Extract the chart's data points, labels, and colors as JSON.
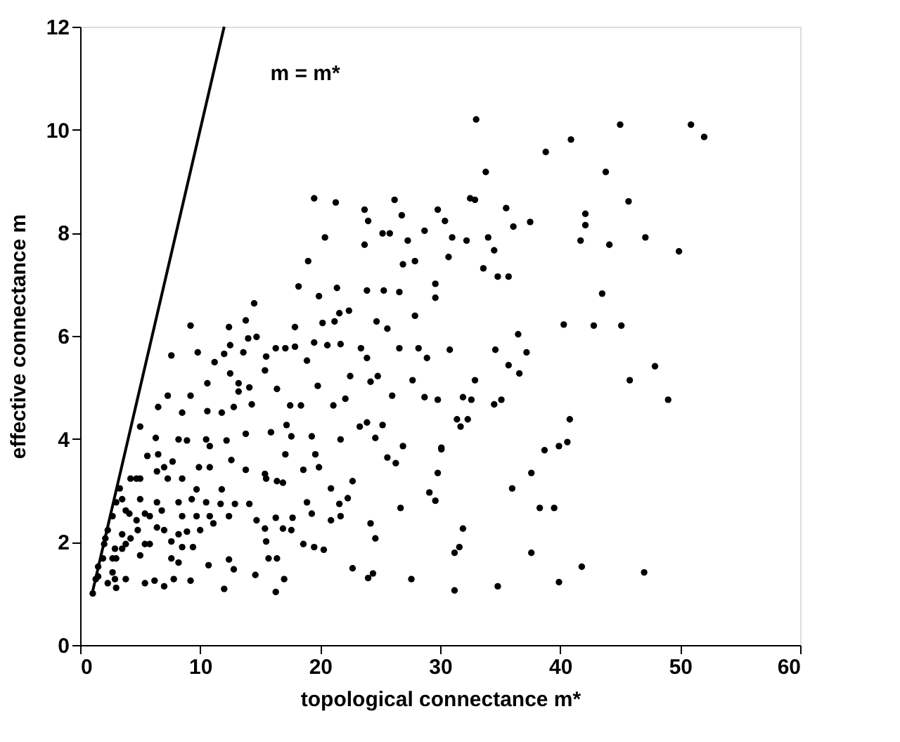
{
  "chart_data": {
    "type": "scatter",
    "xlabel": "topological connectance   m*",
    "ylabel": "effective connectance   m",
    "xlim": [
      0,
      60
    ],
    "xticks": [
      0,
      10,
      20,
      30,
      40,
      50,
      60
    ],
    "ylim": [
      0,
      12
    ],
    "yticks": [
      0,
      2,
      4,
      6,
      8,
      10,
      12
    ],
    "grid": false,
    "annotations": [
      "m = m*"
    ],
    "series": [
      {
        "type": "line",
        "color": "#000000",
        "line_style": "solid",
        "marker": "none",
        "x": [
          1,
          12
        ],
        "values": [
          1,
          12
        ]
      },
      {
        "color": "#000000",
        "marker": "circle",
        "x": [
          33.0,
          45.0,
          50.9,
          52.0,
          40.9,
          38.8,
          33.8,
          43.8,
          32.5,
          32.9,
          45.7,
          29.8,
          35.5,
          42.1,
          30.4,
          36.1,
          37.5,
          42.1,
          31.0,
          32.2,
          34.0,
          34.5,
          41.7,
          44.1,
          47.1,
          49.9,
          30.7,
          33.6,
          34.8,
          35.7,
          43.5,
          40.3,
          42.8,
          45.1,
          36.5,
          30.8,
          34.6,
          37.2,
          35.7,
          36.6,
          32.9,
          45.8,
          47.9,
          49.0,
          29.8,
          31.9,
          32.6,
          34.5,
          35.1,
          31.4,
          32.3,
          31.7,
          40.8,
          30.1,
          38.7,
          39.9,
          40.6,
          29.8,
          37.6,
          36.0,
          38.3,
          39.5,
          31.9,
          31.6,
          31.2,
          37.6,
          41.8,
          47.0,
          31.2,
          34.8,
          39.9,
          19.5,
          21.3,
          23.7,
          26.2,
          24.0,
          26.8,
          20.4,
          23.7,
          25.2,
          25.8,
          27.3,
          28.7,
          19.0,
          26.9,
          27.9,
          18.2,
          19.9,
          21.4,
          23.9,
          25.3,
          26.6,
          29.6,
          29.6,
          14.5,
          13.8,
          9.2,
          12.4,
          17.9,
          20.2,
          21.6,
          22.4,
          21.2,
          24.7,
          25.6,
          27.9,
          7.6,
          9.8,
          12.5,
          14.0,
          14.7,
          16.3,
          17.1,
          17.9,
          19.5,
          20.6,
          21.7,
          23.4,
          26.6,
          28.2,
          28.9,
          12.0,
          13.6,
          11.2,
          15.5,
          18.9,
          23.9,
          10.6,
          12.5,
          13.2,
          14.1,
          15.4,
          16.4,
          19.8,
          22.5,
          24.2,
          24.8,
          27.7,
          7.3,
          9.2,
          13.2,
          22.1,
          26.0,
          28.7,
          6.5,
          8.5,
          10.6,
          11.8,
          12.8,
          14.3,
          17.5,
          18.4,
          21.1,
          5.0,
          6.3,
          8.2,
          8.9,
          10.5,
          10.8,
          12.2,
          13.8,
          15.9,
          17.2,
          17.6,
          19.3,
          21.7,
          23.3,
          23.9,
          24.6,
          25.2,
          26.9,
          30.1,
          5.6,
          6.5,
          7.7,
          9.9,
          10.8,
          12.6,
          13.8,
          15.4,
          17.1,
          18.6,
          19.6,
          19.9,
          25.6,
          26.3,
          3.3,
          4.2,
          5.0,
          7.3,
          8.5,
          9.7,
          11.8,
          15.5,
          16.4,
          16.9,
          20.9,
          22.7,
          29.1,
          29.6,
          3.0,
          5.0,
          6.4,
          8.2,
          9.3,
          10.5,
          11.7,
          12.9,
          14.1,
          18.9,
          19.3,
          21.6,
          22.3,
          26.7,
          2.7,
          4.1,
          5.4,
          6.8,
          8.5,
          9.7,
          10.8,
          12.4,
          14.7,
          16.3,
          17.7,
          20.9,
          21.7,
          24.2,
          2.3,
          3.5,
          4.8,
          7.0,
          8.2,
          8.9,
          10.0,
          11.1,
          15.4,
          16.9,
          17.6,
          24.6,
          2.0,
          2.9,
          3.8,
          5.8,
          7.6,
          8.5,
          9.4,
          15.5,
          18.6,
          19.5,
          20.3,
          1.9,
          3.0,
          5.0,
          7.6,
          8.2,
          10.7,
          12.4,
          12.8,
          15.7,
          16.4,
          14.6,
          17.0,
          22.7,
          24.0,
          24.4,
          27.6,
          1.5,
          2.9,
          3.8,
          5.4,
          6.2,
          7.0,
          7.8,
          9.2,
          12.0,
          16.3,
          1.05,
          2.3,
          3.0,
          2.1,
          2.7,
          3.5,
          4.2,
          5.4,
          4.7,
          3.8,
          3.5,
          4.7,
          6.4,
          7.0,
          5.8,
          6.4,
          1.5,
          1.3,
          2.7
        ],
        "values": [
          10.2,
          10.1,
          10.1,
          9.86,
          9.81,
          9.57,
          9.18,
          9.18,
          8.67,
          8.64,
          8.61,
          8.45,
          8.48,
          8.37,
          8.23,
          8.12,
          8.21,
          8.15,
          7.91,
          7.85,
          7.91,
          7.66,
          7.85,
          7.77,
          7.91,
          7.64,
          7.53,
          7.31,
          7.15,
          7.15,
          6.82,
          6.22,
          6.2,
          6.2,
          6.03,
          5.73,
          5.73,
          5.68,
          5.43,
          5.27,
          5.14,
          5.14,
          5.41,
          4.76,
          4.76,
          4.81,
          4.76,
          4.67,
          4.76,
          4.38,
          4.38,
          4.24,
          4.38,
          3.8,
          3.78,
          3.86,
          3.94,
          3.34,
          3.34,
          3.04,
          2.66,
          2.66,
          2.26,
          1.9,
          1.79,
          1.79,
          1.52,
          1.41,
          1.06,
          1.14,
          1.22,
          8.67,
          8.59,
          8.45,
          8.64,
          8.23,
          8.34,
          7.91,
          7.77,
          7.99,
          7.99,
          7.85,
          8.04,
          7.45,
          7.39,
          7.45,
          6.96,
          6.77,
          6.93,
          6.88,
          6.88,
          6.85,
          7.01,
          6.74,
          6.63,
          6.3,
          6.2,
          6.17,
          6.17,
          6.25,
          6.44,
          6.49,
          6.28,
          6.28,
          6.14,
          6.39,
          5.62,
          5.68,
          5.82,
          5.95,
          5.98,
          5.76,
          5.76,
          5.79,
          5.87,
          5.82,
          5.84,
          5.76,
          5.76,
          5.76,
          5.57,
          5.65,
          5.68,
          5.49,
          5.6,
          5.52,
          5.57,
          5.08,
          5.27,
          5.08,
          5.0,
          5.33,
          4.97,
          5.03,
          5.22,
          5.11,
          5.22,
          5.14,
          4.84,
          4.84,
          4.92,
          4.78,
          4.84,
          4.81,
          4.62,
          4.51,
          4.54,
          4.51,
          4.62,
          4.67,
          4.65,
          4.65,
          4.65,
          4.24,
          4.02,
          3.99,
          3.97,
          3.99,
          3.86,
          3.97,
          4.1,
          4.13,
          4.27,
          4.05,
          4.05,
          3.99,
          4.24,
          4.32,
          4.02,
          4.27,
          3.86,
          3.83,
          3.67,
          3.7,
          3.56,
          3.45,
          3.45,
          3.59,
          3.4,
          3.32,
          3.7,
          3.4,
          3.7,
          3.45,
          3.64,
          3.53,
          3.04,
          3.23,
          3.23,
          3.23,
          3.23,
          3.02,
          3.02,
          3.23,
          3.18,
          3.15,
          3.04,
          3.18,
          2.96,
          2.8,
          2.77,
          2.83,
          2.77,
          2.77,
          2.83,
          2.77,
          2.74,
          2.74,
          2.74,
          2.77,
          2.55,
          2.74,
          2.85,
          2.66,
          2.5,
          2.55,
          2.55,
          2.61,
          2.5,
          2.5,
          2.5,
          2.5,
          2.42,
          2.47,
          2.47,
          2.42,
          2.5,
          2.36,
          2.23,
          2.15,
          2.23,
          2.23,
          2.15,
          2.2,
          2.23,
          2.36,
          2.26,
          2.26,
          2.23,
          2.07,
          1.96,
          1.87,
          1.96,
          1.96,
          2.01,
          1.9,
          1.9,
          2.01,
          1.96,
          1.9,
          1.85,
          1.68,
          1.68,
          1.74,
          1.68,
          1.6,
          1.55,
          1.66,
          1.47,
          1.68,
          1.68,
          1.36,
          1.28,
          1.49,
          1.3,
          1.39,
          1.28,
          1.33,
          1.28,
          1.28,
          1.2,
          1.25,
          1.14,
          1.28,
          1.25,
          1.09,
          1.03,
          1.0,
          1.2,
          1.11,
          2.07,
          1.68,
          1.87,
          2.07,
          1.96,
          2.42,
          2.61,
          2.83,
          3.23,
          3.37,
          3.45,
          2.5,
          2.28,
          1.52,
          1.28,
          1.41
        ]
      }
    ]
  }
}
